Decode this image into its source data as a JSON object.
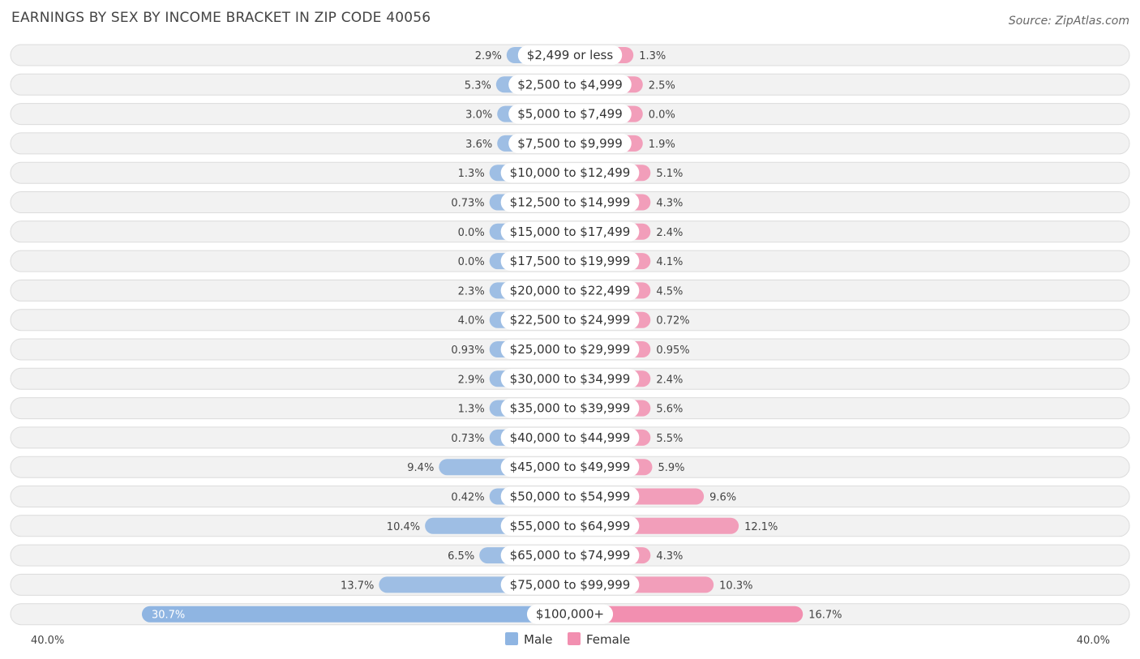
{
  "chart_data": {
    "type": "bar",
    "orientation": "horizontal-diverging",
    "title": "EARNINGS BY SEX BY INCOME BRACKET IN ZIP CODE 40056",
    "source": "Source: ZipAtlas.com",
    "categories": [
      "$2,499 or less",
      "$2,500 to $4,999",
      "$5,000 to $7,499",
      "$7,500 to $9,999",
      "$10,000 to $12,499",
      "$12,500 to $14,999",
      "$15,000 to $17,499",
      "$17,500 to $19,999",
      "$20,000 to $22,499",
      "$22,500 to $24,999",
      "$25,000 to $29,999",
      "$30,000 to $34,999",
      "$35,000 to $39,999",
      "$40,000 to $44,999",
      "$45,000 to $49,999",
      "$50,000 to $54,999",
      "$55,000 to $64,999",
      "$65,000 to $74,999",
      "$75,000 to $99,999",
      "$100,000+"
    ],
    "series": [
      {
        "name": "Male",
        "color": "#8fb5e2",
        "values": [
          2.9,
          5.3,
          3.0,
          3.6,
          1.3,
          0.73,
          0.0,
          0.0,
          2.3,
          4.0,
          0.93,
          2.9,
          1.3,
          0.73,
          9.4,
          0.42,
          10.4,
          6.5,
          13.7,
          30.7
        ],
        "labels": [
          "2.9%",
          "5.3%",
          "3.0%",
          "3.6%",
          "1.3%",
          "0.73%",
          "0.0%",
          "0.0%",
          "2.3%",
          "4.0%",
          "0.93%",
          "2.9%",
          "1.3%",
          "0.73%",
          "9.4%",
          "0.42%",
          "10.4%",
          "6.5%",
          "13.7%",
          "30.7%"
        ]
      },
      {
        "name": "Female",
        "color": "#f28fb0",
        "values": [
          1.3,
          2.5,
          0.0,
          1.9,
          5.1,
          4.3,
          2.4,
          4.1,
          4.5,
          0.72,
          0.95,
          2.4,
          5.6,
          5.5,
          5.9,
          9.6,
          12.1,
          4.3,
          10.3,
          16.7
        ],
        "labels": [
          "1.3%",
          "2.5%",
          "0.0%",
          "1.9%",
          "5.1%",
          "4.3%",
          "2.4%",
          "4.1%",
          "4.5%",
          "0.72%",
          "0.95%",
          "2.4%",
          "5.6%",
          "5.5%",
          "5.9%",
          "9.6%",
          "12.1%",
          "4.3%",
          "10.3%",
          "16.7%"
        ]
      }
    ],
    "axis": {
      "min_label": "40.0%",
      "max_label": "40.0%",
      "max": 40.0
    },
    "legend": [
      "Male",
      "Female"
    ]
  }
}
